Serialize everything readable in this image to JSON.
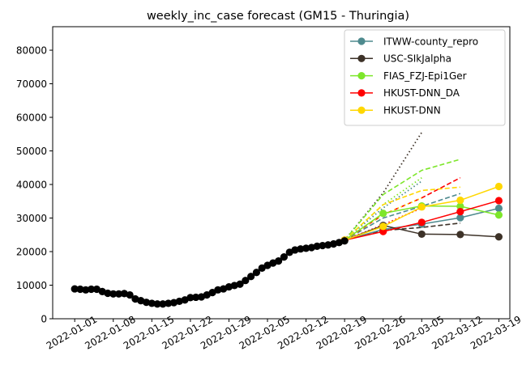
{
  "chart_data": {
    "type": "line",
    "title": "weekly_inc_case forecast (GM15 - Thuringia)",
    "xlabel": "",
    "ylabel": "",
    "xlim": [
      "2021-12-28",
      "2022-03-21"
    ],
    "ylim": [
      0,
      87000
    ],
    "x_ticks": [
      "2022-01-01",
      "2022-01-08",
      "2022-01-15",
      "2022-01-22",
      "2022-01-29",
      "2022-02-05",
      "2022-02-12",
      "2022-02-19",
      "2022-02-26",
      "2022-03-05",
      "2022-03-12",
      "2022-03-19"
    ],
    "y_ticks": [
      0,
      10000,
      20000,
      30000,
      40000,
      50000,
      60000,
      70000,
      80000
    ],
    "legend_position": "top-right",
    "observed": {
      "name": "observed",
      "color": "#000000",
      "x": [
        "2022-01-01",
        "2022-01-02",
        "2022-01-03",
        "2022-01-04",
        "2022-01-05",
        "2022-01-06",
        "2022-01-07",
        "2022-01-08",
        "2022-01-09",
        "2022-01-10",
        "2022-01-11",
        "2022-01-12",
        "2022-01-13",
        "2022-01-14",
        "2022-01-15",
        "2022-01-16",
        "2022-01-17",
        "2022-01-18",
        "2022-01-19",
        "2022-01-20",
        "2022-01-21",
        "2022-01-22",
        "2022-01-23",
        "2022-01-24",
        "2022-01-25",
        "2022-01-26",
        "2022-01-27",
        "2022-01-28",
        "2022-01-29",
        "2022-01-30",
        "2022-01-31",
        "2022-02-01",
        "2022-02-02",
        "2022-02-03",
        "2022-02-04",
        "2022-02-05",
        "2022-02-06",
        "2022-02-07",
        "2022-02-08",
        "2022-02-09",
        "2022-02-10",
        "2022-02-11",
        "2022-02-12",
        "2022-02-13",
        "2022-02-14",
        "2022-02-15",
        "2022-02-16",
        "2022-02-17",
        "2022-02-18",
        "2022-02-19"
      ],
      "values": [
        8900,
        8800,
        8600,
        8800,
        8800,
        8100,
        7600,
        7400,
        7400,
        7500,
        7100,
        5900,
        5400,
        4900,
        4600,
        4400,
        4400,
        4600,
        4800,
        5200,
        5600,
        6300,
        6400,
        6500,
        7100,
        7800,
        8600,
        8900,
        9500,
        9900,
        10300,
        11400,
        12600,
        13800,
        15100,
        15900,
        16600,
        17200,
        18400,
        19800,
        20500,
        20800,
        21000,
        21200,
        21600,
        21800,
        22000,
        22300,
        22700,
        23200
      ]
    },
    "series": [
      {
        "name": "ITWW-county_repro",
        "color": "#4e8a8e",
        "x": [
          "2022-02-19",
          "2022-02-26",
          "2022-03-05",
          "2022-03-12",
          "2022-03-19"
        ],
        "values": [
          23400,
          26600,
          28200,
          30100,
          32900
        ],
        "upper_dashed": [
          23400,
          30000,
          33500,
          37300
        ],
        "upper_dotted": [
          23400,
          33000,
          41000
        ]
      },
      {
        "name": "USC-SIkJalpha",
        "color": "#3d3228",
        "x": [
          "2022-02-19",
          "2022-02-26",
          "2022-03-05",
          "2022-03-12",
          "2022-03-19"
        ],
        "values": [
          23400,
          27800,
          25200,
          25100,
          24400
        ],
        "upper_dashed": [
          23400,
          26300,
          27200,
          28500
        ],
        "upper_dotted": [
          23400,
          37500,
          55500
        ]
      },
      {
        "name": "FIAS_FZJ-Epi1Ger",
        "color": "#7de62a",
        "x": [
          "2022-02-19",
          "2022-02-26",
          "2022-03-05",
          "2022-03-12",
          "2022-03-19"
        ],
        "values": [
          23400,
          31400,
          33600,
          33500,
          30900
        ],
        "upper_dashed": [
          23400,
          37000,
          44200,
          47500
        ],
        "upper_dotted": [
          23400,
          34000,
          42000
        ]
      },
      {
        "name": "HKUST-DNN_DA",
        "color": "#ff0000",
        "x": [
          "2022-02-19",
          "2022-02-26",
          "2022-03-05",
          "2022-03-12",
          "2022-03-19"
        ],
        "values": [
          23400,
          26000,
          28700,
          31900,
          35200
        ],
        "upper_dashed": [
          23400,
          31000,
          36000,
          42000
        ],
        "upper_dotted": [
          23400,
          28000,
          33000
        ]
      },
      {
        "name": "HKUST-DNN",
        "color": "#ffd700",
        "x": [
          "2022-02-19",
          "2022-02-26",
          "2022-03-05",
          "2022-03-12",
          "2022-03-19"
        ],
        "values": [
          23400,
          27500,
          33300,
          35300,
          39400
        ],
        "upper_dashed": [
          23400,
          34000,
          38200,
          39200
        ],
        "upper_dotted": [
          23400,
          31000,
          36000
        ]
      }
    ]
  }
}
